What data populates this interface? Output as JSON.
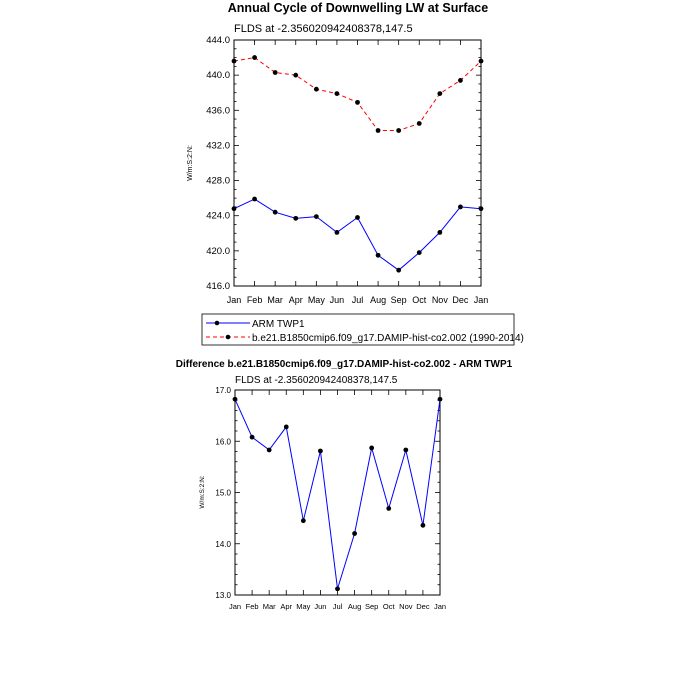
{
  "chart_data": [
    {
      "type": "line",
      "title": "Annual Cycle of Downwelling LW at Surface",
      "subtitle": "FLDS at -2.356020942408378,147.5",
      "ylabel": "W/m:S:2:N:",
      "categories": [
        "Jan",
        "Feb",
        "Mar",
        "Apr",
        "May",
        "Jun",
        "Jul",
        "Aug",
        "Sep",
        "Oct",
        "Nov",
        "Dec",
        "Jan"
      ],
      "y_ticks": [
        "416.0",
        "420.0",
        "424.0",
        "428.0",
        "432.0",
        "436.0",
        "440.0",
        "444.0"
      ],
      "ylim": [
        416,
        444
      ],
      "grid": false,
      "legend_position": "bottom",
      "series": [
        {
          "name": "ARM TWP1",
          "color": "#0000ff",
          "dash": "solid",
          "values": [
            424.8,
            425.9,
            424.4,
            423.7,
            423.9,
            422.1,
            423.8,
            419.5,
            417.8,
            419.8,
            422.1,
            425.0,
            424.8
          ]
        },
        {
          "name": "b.e21.B1850cmip6.f09_g17.DAMIP-hist-co2.002 (1990-2014)",
          "color": "#ff0000",
          "dash": "dashed",
          "values": [
            441.6,
            442.0,
            440.3,
            440.0,
            438.4,
            437.9,
            436.9,
            433.7,
            433.7,
            434.5,
            437.9,
            439.4,
            441.6
          ]
        }
      ]
    },
    {
      "type": "line",
      "title": "Difference b.e21.B1850cmip6.f09_g17.DAMIP-hist-co2.002 - ARM TWP1",
      "subtitle": "FLDS at -2.356020942408378,147.5",
      "ylabel": "W/m:S:2:N:",
      "categories": [
        "Jan",
        "Feb",
        "Mar",
        "Apr",
        "May",
        "Jun",
        "Jul",
        "Aug",
        "Sep",
        "Oct",
        "Nov",
        "Dec",
        "Jan"
      ],
      "y_ticks": [
        "13.0",
        "14.0",
        "15.0",
        "16.0",
        "17.0"
      ],
      "ylim": [
        13,
        17
      ],
      "grid": false,
      "series": [
        {
          "color": "#0000ff",
          "dash": "solid",
          "values": [
            16.82,
            16.08,
            15.83,
            16.28,
            14.45,
            15.81,
            13.12,
            14.2,
            15.87,
            14.69,
            15.83,
            14.36,
            16.82
          ]
        }
      ]
    }
  ]
}
